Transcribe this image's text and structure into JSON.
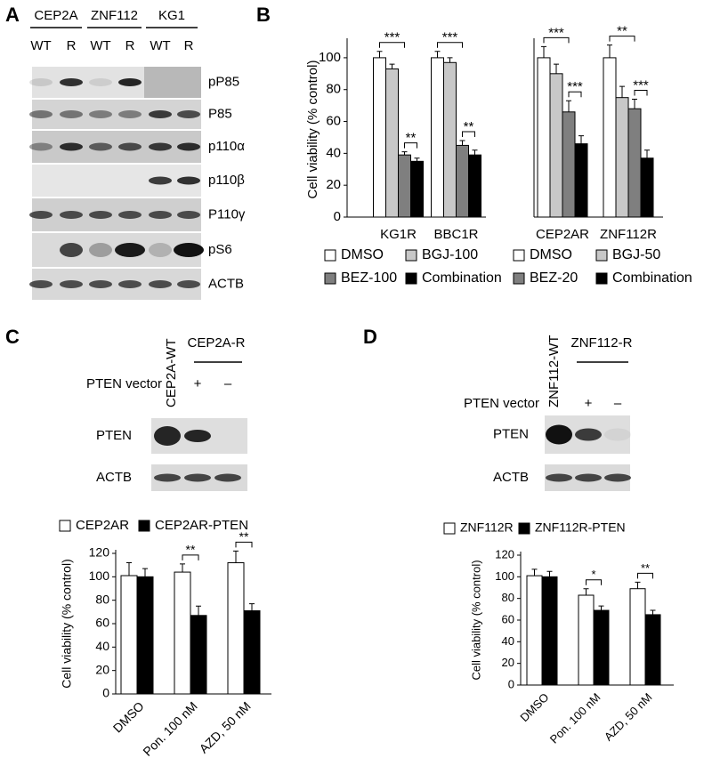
{
  "panel_labels": [
    "A",
    "B",
    "C",
    "D"
  ],
  "blot_a": {
    "cell_lines": [
      "CEP2A",
      "ZNF112",
      "KG1"
    ],
    "lanes": [
      "WT",
      "R",
      "WT",
      "R",
      "WT",
      "R"
    ],
    "proteins": [
      "pP85",
      "P85",
      "p110α",
      "p110β",
      "P110γ",
      "pS6",
      "ACTB"
    ]
  },
  "blot_c": {
    "wt_label": "CEP2A-WT",
    "r_label": "CEP2A-R",
    "vector_label": "PTEN vector",
    "vector_marks": [
      "+",
      "–"
    ],
    "proteins": [
      "PTEN",
      "ACTB"
    ]
  },
  "blot_d": {
    "wt_label": "ZNF112-WT",
    "r_label": "ZNF112-R",
    "vector_label": "PTEN vector",
    "vector_marks": [
      "+",
      "–"
    ],
    "proteins": [
      "PTEN",
      "ACTB"
    ]
  },
  "chart_data": [
    {
      "type": "bar",
      "ylabel": "Cell viability (% control)",
      "categories": [
        "KG1R",
        "BBC1R"
      ],
      "series": [
        {
          "name": "DMSO",
          "color": "#ffffff",
          "values": [
            100,
            100
          ],
          "errors": [
            4,
            4
          ]
        },
        {
          "name": "BGJ-100",
          "color": "#c8c8c8",
          "values": [
            93,
            97
          ],
          "errors": [
            3,
            3
          ]
        },
        {
          "name": "BEZ-100",
          "color": "#7f7f7f",
          "values": [
            39,
            45
          ],
          "errors": [
            2,
            3
          ]
        },
        {
          "name": "Combination",
          "color": "#000000",
          "values": [
            35,
            39
          ],
          "errors": [
            2,
            3
          ]
        }
      ],
      "ylim": [
        0,
        110
      ],
      "yticks": [
        0,
        20,
        40,
        60,
        80,
        100
      ],
      "annotations": [
        "***",
        "**",
        "***",
        "**"
      ]
    },
    {
      "type": "bar",
      "categories": [
        "CEP2AR",
        "ZNF112R"
      ],
      "series": [
        {
          "name": "DMSO",
          "color": "#ffffff",
          "values": [
            100,
            100
          ],
          "errors": [
            7,
            8
          ]
        },
        {
          "name": "BGJ-50",
          "color": "#c8c8c8",
          "values": [
            90,
            75
          ],
          "errors": [
            6,
            7
          ]
        },
        {
          "name": "BEZ-20",
          "color": "#7f7f7f",
          "values": [
            66,
            68
          ],
          "errors": [
            7,
            6
          ]
        },
        {
          "name": "Combination",
          "color": "#000000",
          "values": [
            46,
            37
          ],
          "errors": [
            5,
            5
          ]
        }
      ],
      "ylim": [
        0,
        110
      ],
      "annotations": [
        "***",
        "***",
        "**",
        "***"
      ]
    },
    {
      "type": "bar",
      "ylabel": "Cell viability (% control)",
      "categories": [
        "DMSO",
        "Pon. 100 nM",
        "AZD, 50 nM"
      ],
      "series": [
        {
          "name": "CEP2AR",
          "color": "#ffffff",
          "values": [
            101,
            104,
            112
          ],
          "errors": [
            11,
            7,
            10
          ]
        },
        {
          "name": "CEP2AR-PTEN",
          "color": "#000000",
          "values": [
            100,
            67,
            71
          ],
          "errors": [
            7,
            8,
            6
          ]
        }
      ],
      "ylim": [
        0,
        120
      ],
      "yticks": [
        0,
        20,
        40,
        60,
        80,
        100,
        120
      ],
      "annotations": [
        "**",
        "**"
      ]
    },
    {
      "type": "bar",
      "ylabel": "Cell viability (% control)",
      "categories": [
        "DMSO",
        "Pon. 100 nM",
        "AZD, 50 nM"
      ],
      "series": [
        {
          "name": "ZNF112R",
          "color": "#ffffff",
          "values": [
            101,
            83,
            89
          ],
          "errors": [
            6,
            6,
            6
          ]
        },
        {
          "name": "ZNF112R-PTEN",
          "color": "#000000",
          "values": [
            100,
            69,
            65
          ],
          "errors": [
            5,
            4,
            4
          ]
        }
      ],
      "ylim": [
        0,
        120
      ],
      "yticks": [
        0,
        20,
        40,
        60,
        80,
        100,
        120
      ],
      "annotations": [
        "*",
        "**"
      ]
    }
  ]
}
